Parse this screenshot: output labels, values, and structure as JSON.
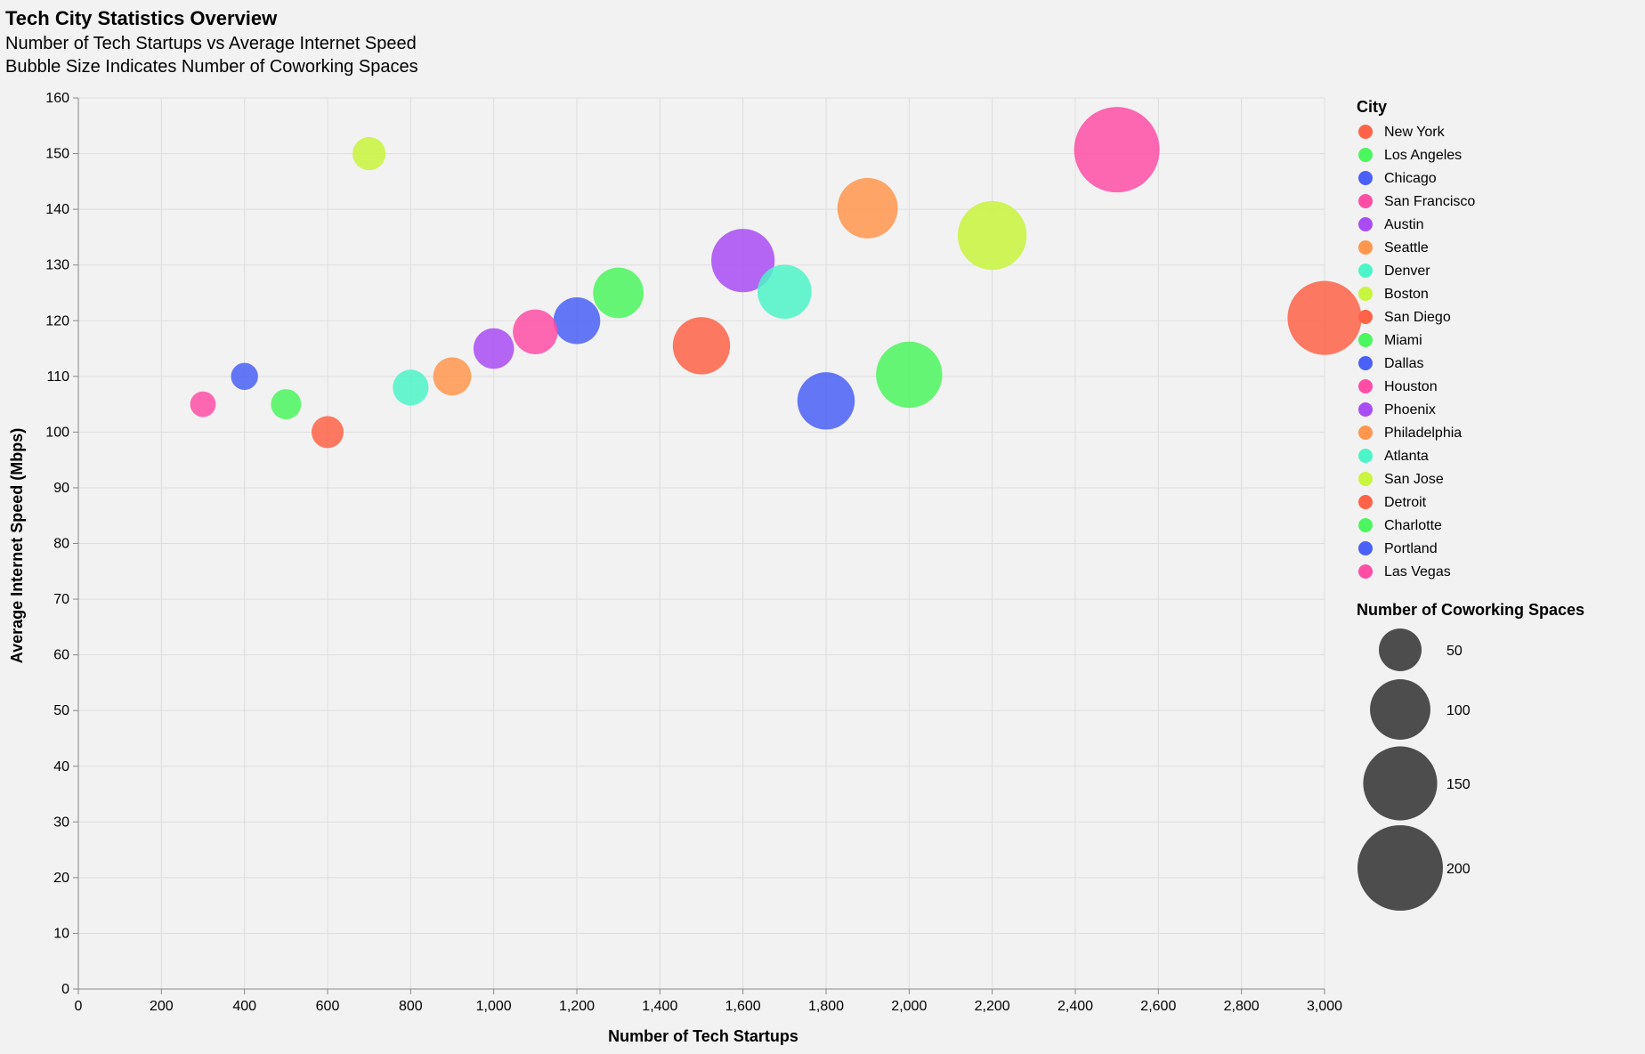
{
  "chart_data": {
    "type": "scatter",
    "title": "Tech City Statistics Overview",
    "subtitle": [
      "Number of Tech Startups vs Average Internet Speed",
      "Bubble Size Indicates Number of Coworking Spaces"
    ],
    "xlabel": "Number of Tech Startups",
    "ylabel": "Average Internet Speed (Mbps)",
    "xlim": [
      0,
      3000
    ],
    "ylim": [
      0,
      160
    ],
    "x_ticks": [
      0,
      200,
      400,
      600,
      800,
      1000,
      1200,
      1400,
      1600,
      1800,
      2000,
      2200,
      2400,
      2600,
      2800,
      3000
    ],
    "x_tick_labels": [
      "0",
      "200",
      "400",
      "600",
      "800",
      "1,000",
      "1,200",
      "1,400",
      "1,600",
      "1,800",
      "2,000",
      "2,200",
      "2,400",
      "2,600",
      "2,800",
      "3,000"
    ],
    "y_ticks": [
      0,
      10,
      20,
      30,
      40,
      50,
      60,
      70,
      80,
      90,
      100,
      110,
      120,
      130,
      140,
      150,
      160
    ],
    "grid": true,
    "legend_placement": "right",
    "color_legend_title": "City",
    "size_legend_title": "Number of Coworking Spaces",
    "size_legend_values": [
      50,
      100,
      150,
      200
    ],
    "size_max_value": 200,
    "points": [
      {
        "city": "New York",
        "startups": 3000,
        "speed": 120.5,
        "coworking": 150,
        "color": "#fe6347"
      },
      {
        "city": "Los Angeles",
        "startups": 2000,
        "speed": 110.3,
        "coworking": 120,
        "color": "#4cf65f"
      },
      {
        "city": "Chicago",
        "startups": 1800,
        "speed": 105.6,
        "coworking": 90,
        "color": "#4a60f7"
      },
      {
        "city": "San Francisco",
        "startups": 2500,
        "speed": 150.7,
        "coworking": 200,
        "color": "#ff4da6"
      },
      {
        "city": "Austin",
        "startups": 1600,
        "speed": 130.8,
        "coworking": 110,
        "color": "#a94cf5"
      },
      {
        "city": "Seattle",
        "startups": 1900,
        "speed": 140.2,
        "coworking": 100,
        "color": "#ff964d"
      },
      {
        "city": "Denver",
        "startups": 1700,
        "speed": 125.2,
        "coworking": 80,
        "color": "#4cf5c8"
      },
      {
        "city": "Boston",
        "startups": 2200,
        "speed": 135.3,
        "coworking": 130,
        "color": "#c8f53d"
      },
      {
        "city": "San Diego",
        "startups": 1500,
        "speed": 115.5,
        "coworking": 90,
        "color": "#fe6347"
      },
      {
        "city": "Miami",
        "startups": 1300,
        "speed": 125.0,
        "coworking": 70,
        "color": "#4cf65f"
      },
      {
        "city": "Dallas",
        "startups": 1200,
        "speed": 120.0,
        "coworking": 60,
        "color": "#4a60f7"
      },
      {
        "city": "Houston",
        "startups": 1100,
        "speed": 118.0,
        "coworking": 55,
        "color": "#ff4da6"
      },
      {
        "city": "Phoenix",
        "startups": 1000,
        "speed": 115.0,
        "coworking": 45,
        "color": "#a94cf5"
      },
      {
        "city": "Philadelphia",
        "startups": 900,
        "speed": 110.0,
        "coworking": 40,
        "color": "#ff964d"
      },
      {
        "city": "Atlanta",
        "startups": 800,
        "speed": 108.0,
        "coworking": 35,
        "color": "#4cf5c8"
      },
      {
        "city": "San Jose",
        "startups": 700,
        "speed": 150.0,
        "coworking": 30,
        "color": "#c8f53d"
      },
      {
        "city": "Detroit",
        "startups": 600,
        "speed": 100.0,
        "coworking": 28,
        "color": "#fe6347"
      },
      {
        "city": "Charlotte",
        "startups": 500,
        "speed": 105.0,
        "coworking": 25,
        "color": "#4cf65f"
      },
      {
        "city": "Portland",
        "startups": 400,
        "speed": 110.0,
        "coworking": 20,
        "color": "#4a60f7"
      },
      {
        "city": "Las Vegas",
        "startups": 300,
        "speed": 105.0,
        "coworking": 18,
        "color": "#ff4da6"
      }
    ]
  }
}
